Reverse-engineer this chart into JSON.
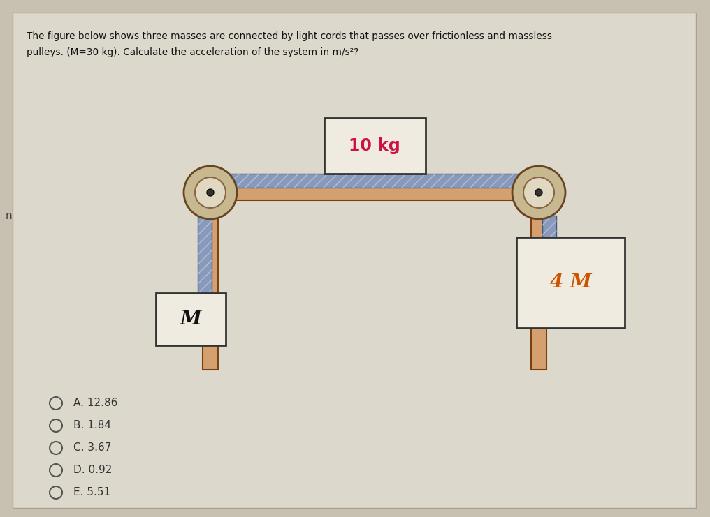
{
  "bg_outer": "#c8c0b0",
  "bg_inner": "#ddd8cc",
  "bg_panel": "#e8e4dc",
  "question_line1": "The figure below shows three masses are connected by light cords that passes over frictionless and massless",
  "question_line2": "pulleys. (M=30 kg). Calculate the acceleration of the system in m/s²?",
  "mass_top_label": "10 kg",
  "mass_left_label": "M",
  "mass_right_label": "4 M",
  "choices": [
    "A. 12.86",
    "B. 1.84",
    "C. 3.67",
    "D. 0.92",
    "E. 5.51"
  ],
  "top_box_fill": "#f0ebe0",
  "hanging_box_fill": "#f0ebe0",
  "table_fill": "#d4a070",
  "table_edge": "#7a4010",
  "rope_fill": "#8899bb",
  "rope_edge": "#445577",
  "rope_hatch_color": "#bbccdd",
  "pulley_outer_fill": "#c8b890",
  "pulley_outer_edge": "#664422",
  "pulley_inner_fill": "#e0d8c0",
  "pulley_inner_edge": "#886644",
  "pulley_dot": "#333333",
  "label_top_color": "#cc1144",
  "label_hanging_color": "#cc5500",
  "label_m_color": "#111111",
  "text_color": "#111111",
  "choice_color": "#333333",
  "box_edge_color": "#333333"
}
